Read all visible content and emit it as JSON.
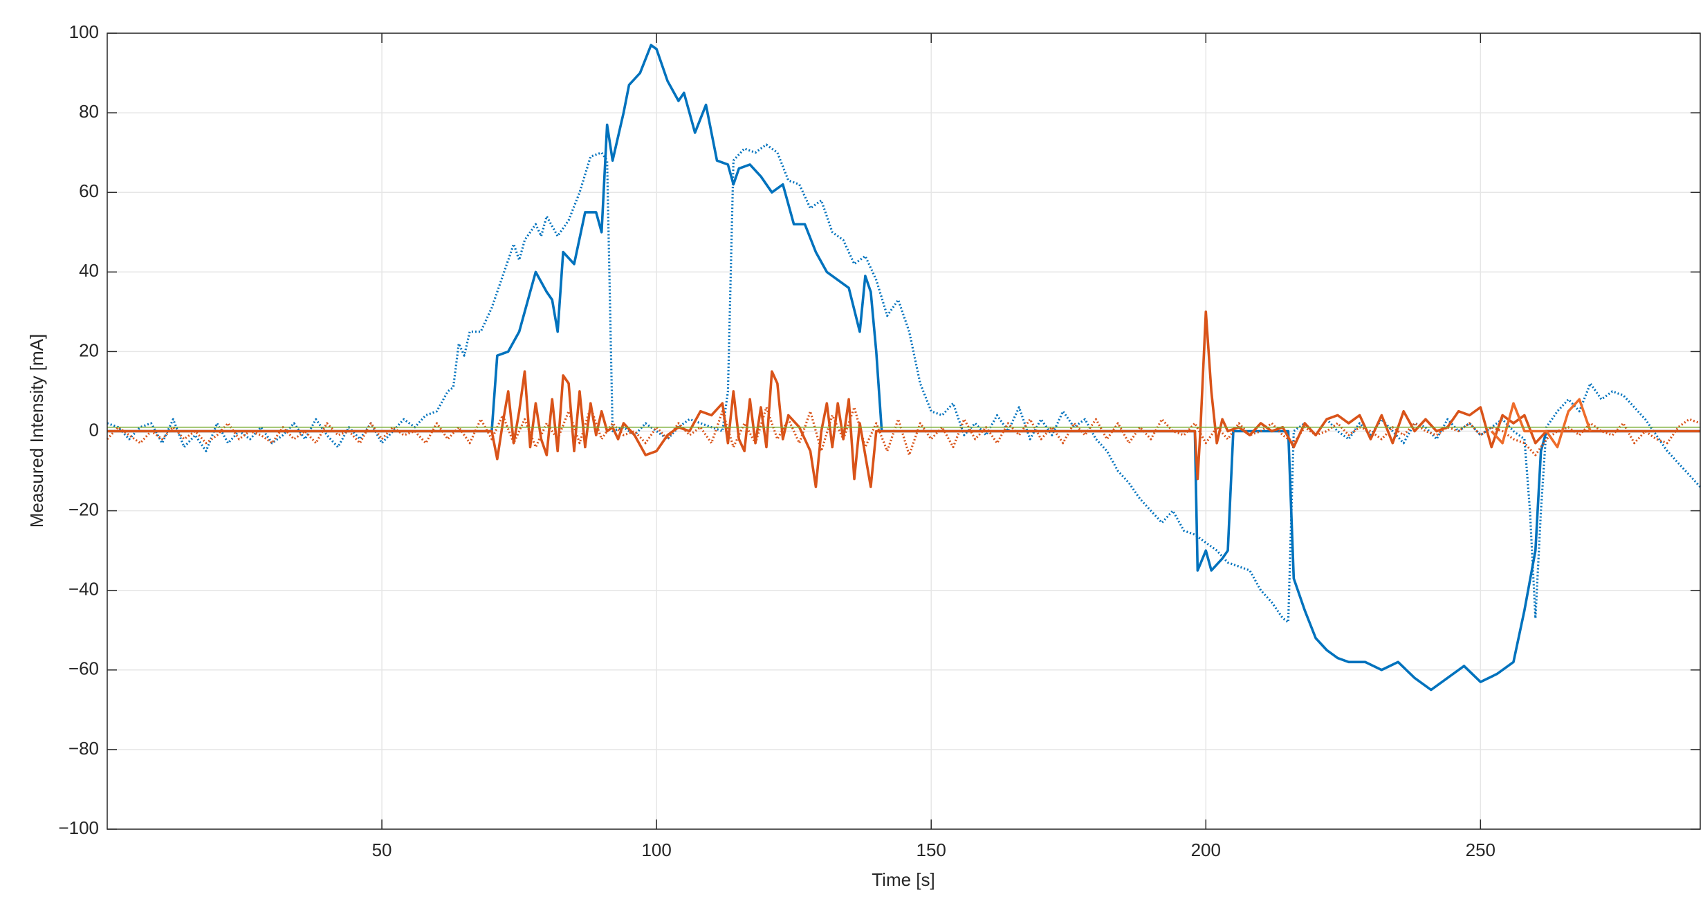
{
  "chart_data": {
    "type": "line",
    "xlabel": "Time [s]",
    "ylabel": "Measured Intensity [mA]",
    "xlim": [
      0,
      290
    ],
    "xticks": [
      50,
      100,
      150,
      200,
      250
    ],
    "ylim": [
      -100,
      100
    ],
    "yticks": [
      {
        "value": -100,
        "label": "−100"
      },
      {
        "value": -80,
        "label": "−80"
      },
      {
        "value": -60,
        "label": "−60"
      },
      {
        "value": -40,
        "label": "−40"
      },
      {
        "value": -20,
        "label": "−20"
      },
      0,
      20,
      40,
      60,
      80,
      100
    ],
    "grid": true,
    "series": [
      {
        "color": "#0072BD",
        "style": "dotted",
        "x": [
          0,
          2,
          4,
          6,
          8,
          10,
          12,
          14,
          16,
          18,
          20,
          22,
          24,
          26,
          28,
          30,
          32,
          34,
          36,
          38,
          40,
          42,
          44,
          46,
          48,
          50,
          52,
          54,
          56,
          58,
          60,
          62,
          63,
          64,
          65,
          66,
          68,
          70,
          72,
          74,
          75,
          76,
          78,
          79,
          80,
          82,
          84,
          86,
          88,
          90,
          91,
          92,
          94,
          96,
          98,
          100,
          102,
          104,
          106,
          108,
          110,
          112,
          113,
          114,
          116,
          118,
          120,
          122,
          124,
          126,
          128,
          130,
          132,
          134,
          136,
          138,
          140,
          142,
          144,
          146,
          148,
          150,
          152,
          154,
          156,
          158,
          160,
          162,
          164,
          166,
          168,
          170,
          172,
          174,
          176,
          178,
          180,
          182,
          184,
          186,
          188,
          190,
          192,
          194,
          196,
          198,
          200,
          202,
          204,
          206,
          208,
          210,
          212,
          214,
          215,
          216,
          218,
          220,
          222,
          224,
          226,
          228,
          230,
          232,
          234,
          236,
          238,
          240,
          242,
          244,
          246,
          248,
          250,
          252,
          254,
          256,
          258,
          259,
          260,
          261,
          262,
          264,
          266,
          268,
          270,
          272,
          274,
          276,
          278,
          280,
          282,
          284,
          286,
          288,
          290
        ],
        "values": [
          2,
          1,
          -2,
          1,
          2,
          -3,
          3,
          -4,
          -1,
          -5,
          2,
          -3,
          0,
          -2,
          1,
          -3,
          -1,
          2,
          -2,
          3,
          -1,
          -4,
          1,
          -2,
          2,
          -3,
          0,
          3,
          1,
          4,
          5,
          10,
          11,
          22,
          19,
          25,
          25,
          31,
          39,
          47,
          43,
          48,
          52,
          49,
          54,
          49,
          53,
          60,
          69,
          70,
          68,
          0,
          1,
          -1,
          2,
          0,
          -2,
          1,
          3,
          2,
          1,
          0,
          10,
          68,
          71,
          70,
          72,
          70,
          63,
          62,
          56,
          58,
          50,
          48,
          42,
          44,
          38,
          29,
          33,
          25,
          12,
          5,
          4,
          7,
          -1,
          2,
          -1,
          4,
          0,
          6,
          -2,
          3,
          -1,
          5,
          1,
          3,
          -2,
          -5,
          -10,
          -13,
          -17,
          -20,
          -23,
          -20,
          -25,
          -26,
          -28,
          -30,
          -33,
          -34,
          -35,
          -40,
          -43,
          -47,
          -48,
          0,
          2,
          -1,
          3,
          0,
          -2,
          2,
          -1,
          3,
          0,
          -3,
          2,
          1,
          -2,
          3,
          0,
          2,
          -1,
          1,
          3,
          0,
          -2,
          -20,
          -47,
          -20,
          1,
          5,
          8,
          5,
          12,
          8,
          10,
          9,
          6,
          3,
          -1,
          -5,
          -8,
          -11,
          -14
        ]
      },
      {
        "color": "#0072BD",
        "style": "solid",
        "x": [
          0,
          70,
          71,
          73,
          75,
          77,
          78,
          80,
          81,
          82,
          83,
          85,
          87,
          89,
          90,
          91,
          92,
          94,
          95,
          97,
          99,
          100,
          102,
          104,
          105,
          107,
          109,
          111,
          113,
          114,
          115,
          117,
          119,
          121,
          123,
          125,
          127,
          129,
          131,
          133,
          135,
          137,
          138,
          139,
          140,
          141,
          198,
          198.5,
          200,
          201,
          203,
          204,
          205,
          215,
          216,
          218,
          220,
          222,
          224,
          226,
          229,
          232,
          235,
          238,
          241,
          244,
          247,
          250,
          253,
          256,
          258,
          260,
          261,
          262,
          290
        ],
        "values": [
          0,
          0,
          19,
          20,
          25,
          35,
          40,
          35,
          33,
          25,
          45,
          42,
          55,
          55,
          50,
          77,
          68,
          80,
          87,
          90,
          97,
          96,
          88,
          83,
          85,
          75,
          82,
          68,
          67,
          62,
          66,
          67,
          64,
          60,
          62,
          52,
          52,
          45,
          40,
          38,
          36,
          25,
          39,
          35,
          20,
          0,
          0,
          -35,
          -30,
          -35,
          -32,
          -30,
          0,
          0,
          -37,
          -45,
          -52,
          -55,
          -57,
          -58,
          -58,
          -60,
          -58,
          -62,
          -65,
          -62,
          -59,
          -63,
          -61,
          -58,
          -45,
          -30,
          -5,
          0,
          0
        ]
      },
      {
        "color": "#D95319",
        "style": "dotted",
        "x": [
          0,
          2,
          4,
          6,
          8,
          10,
          12,
          14,
          16,
          18,
          20,
          22,
          24,
          26,
          28,
          30,
          32,
          34,
          36,
          38,
          40,
          42,
          44,
          46,
          48,
          50,
          52,
          54,
          56,
          58,
          60,
          62,
          64,
          66,
          68,
          70,
          72,
          74,
          76,
          78,
          80,
          82,
          84,
          86,
          88,
          90,
          92,
          94,
          96,
          98,
          100,
          102,
          104,
          106,
          108,
          110,
          112,
          114,
          116,
          118,
          120,
          122,
          124,
          126,
          128,
          130,
          132,
          134,
          136,
          138,
          140,
          142,
          144,
          146,
          148,
          150,
          152,
          154,
          156,
          158,
          160,
          162,
          164,
          166,
          168,
          170,
          172,
          174,
          176,
          178,
          180,
          182,
          184,
          186,
          188,
          190,
          192,
          194,
          196,
          198,
          200,
          202,
          204,
          206,
          208,
          210,
          212,
          214,
          216,
          218,
          220,
          222,
          224,
          226,
          228,
          230,
          232,
          234,
          236,
          238,
          240,
          242,
          244,
          246,
          248,
          250,
          252,
          254,
          256,
          258,
          260,
          262,
          264,
          266,
          268,
          270,
          272,
          274,
          276,
          278,
          280,
          282,
          284,
          286,
          288,
          290
        ],
        "values": [
          -2,
          1,
          -1,
          -3,
          0,
          -2,
          1,
          -2,
          0,
          -3,
          -1,
          2,
          -2,
          0,
          -1,
          -3,
          1,
          -2,
          0,
          -3,
          2,
          -1,
          0,
          -3,
          2,
          -2,
          1,
          -1,
          0,
          -3,
          2,
          -2,
          1,
          -3,
          3,
          -2,
          4,
          -3,
          3,
          -4,
          2,
          -2,
          5,
          -3,
          6,
          -2,
          2,
          -1,
          0,
          -3,
          1,
          -2,
          2,
          -1,
          1,
          -3,
          5,
          -4,
          2,
          -3,
          6,
          -2,
          3,
          -3,
          5,
          -5,
          4,
          -2,
          6,
          -4,
          2,
          -5,
          3,
          -6,
          2,
          -2,
          1,
          -4,
          3,
          -2,
          1,
          -3,
          2,
          -1,
          3,
          -2,
          1,
          -3,
          2,
          -1,
          3,
          -2,
          2,
          -3,
          1,
          -2,
          3,
          0,
          -1,
          2,
          -3,
          1,
          -2,
          2,
          -1,
          0,
          2,
          -1,
          -3,
          1,
          -1,
          0,
          2,
          -1,
          1,
          0,
          -2,
          1,
          -1,
          2,
          0,
          -1,
          1,
          0,
          2,
          -1,
          1,
          0,
          -2,
          -3,
          -6,
          -2,
          0,
          1,
          -1,
          2,
          0,
          -1,
          2,
          -3,
          0,
          -2,
          -3,
          1,
          3,
          2
        ]
      },
      {
        "color": "#D95319",
        "style": "solid",
        "x": [
          0,
          70,
          71,
          72,
          73,
          74,
          75,
          76,
          77,
          78,
          79,
          80,
          81,
          82,
          83,
          84,
          85,
          86,
          87,
          88,
          89,
          90,
          91,
          92,
          93,
          94,
          96,
          98,
          100,
          102,
          104,
          106,
          108,
          110,
          112,
          113,
          114,
          115,
          116,
          117,
          118,
          119,
          120,
          121,
          122,
          123,
          124,
          126,
          128,
          129,
          130,
          131,
          132,
          133,
          134,
          135,
          136,
          137,
          138,
          139,
          140,
          142,
          198,
          198.5,
          199,
          200,
          201,
          202,
          203,
          204,
          206,
          208,
          210,
          212,
          214,
          216,
          218,
          220,
          222,
          224,
          226,
          228,
          230,
          232,
          234,
          236,
          238,
          240,
          242,
          244,
          246,
          248,
          250,
          252,
          254,
          256,
          258,
          260,
          262,
          290
        ],
        "values": [
          0,
          0,
          -7,
          2,
          10,
          -3,
          5,
          15,
          -4,
          7,
          -2,
          -6,
          8,
          -5,
          14,
          12,
          -5,
          10,
          -4,
          7,
          -1,
          5,
          0,
          1,
          -2,
          2,
          -1,
          -6,
          -5,
          -1,
          1,
          0,
          5,
          4,
          7,
          -3,
          10,
          -2,
          -5,
          8,
          -3,
          6,
          -4,
          15,
          12,
          -2,
          4,
          1,
          -5,
          -14,
          0,
          7,
          -4,
          7,
          -2,
          8,
          -12,
          2,
          -6,
          -14,
          0,
          0,
          0,
          -12,
          0,
          30,
          10,
          -3,
          3,
          0,
          1,
          -1,
          2,
          0,
          1,
          -4,
          2,
          -1,
          3,
          4,
          2,
          4,
          -2,
          4,
          -3,
          5,
          0,
          3,
          0,
          1,
          5,
          4,
          6,
          -4,
          4,
          2,
          4,
          -3,
          0,
          0
        ]
      },
      {
        "color": "#EE6C2A",
        "style": "solid",
        "x": [
          252,
          254,
          256,
          258,
          260,
          262,
          264,
          266,
          268,
          270
        ],
        "values": [
          0,
          -3,
          7,
          0,
          0,
          0,
          -4,
          5,
          8,
          0
        ]
      },
      {
        "color": "#77AC30",
        "style": "thin",
        "x": [
          0,
          290
        ],
        "values": [
          1,
          1
        ]
      }
    ]
  }
}
